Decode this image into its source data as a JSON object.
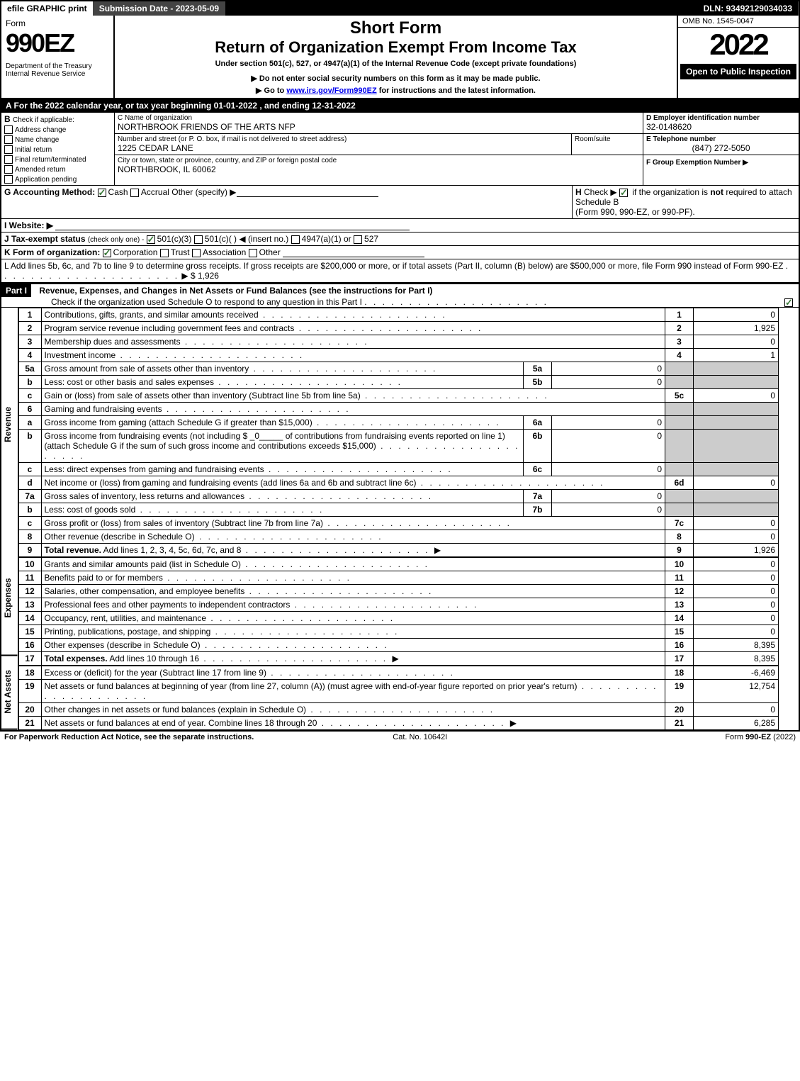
{
  "topbar": {
    "efile": "efile GRAPHIC print",
    "submission": "Submission Date - 2023-05-09",
    "dln": "DLN: 93492129034033"
  },
  "header": {
    "form_label": "Form",
    "form_no": "990EZ",
    "dept": "Department of the Treasury\nInternal Revenue Service",
    "title1": "Short Form",
    "title2": "Return of Organization Exempt From Income Tax",
    "sub1": "Under section 501(c), 527, or 4947(a)(1) of the Internal Revenue Code (except private foundations)",
    "sub2": "▶ Do not enter social security numbers on this form as it may be made public.",
    "sub3_a": "▶ Go to ",
    "sub3_link": "www.irs.gov/Form990EZ",
    "sub3_b": " for instructions and the latest information.",
    "omb": "OMB No. 1545-0047",
    "year": "2022",
    "opento": "Open to Public Inspection"
  },
  "lineA": "A  For the 2022 calendar year, or tax year beginning 01-01-2022 , and ending 12-31-2022",
  "boxB": {
    "label": "B",
    "check": "Check if applicable:",
    "items": [
      "Address change",
      "Name change",
      "Initial return",
      "Final return/terminated",
      "Amended return",
      "Application pending"
    ]
  },
  "boxC": {
    "name_lbl": "C Name of organization",
    "name": "NORTHBROOK FRIENDS OF THE ARTS NFP",
    "addr_lbl": "Number and street (or P. O. box, if mail is not delivered to street address)",
    "addr": "1225 CEDAR LANE",
    "room_lbl": "Room/suite",
    "city_lbl": "City or town, state or province, country, and ZIP or foreign postal code",
    "city": "NORTHBROOK, IL  60062"
  },
  "boxD": {
    "lbl": "D Employer identification number",
    "val": "32-0148620"
  },
  "boxE": {
    "lbl": "E Telephone number",
    "val": "(847) 272-5050"
  },
  "boxF": {
    "lbl": "F Group Exemption Number ▶",
    "val": ""
  },
  "lineG": {
    "lbl": "G Accounting Method:",
    "cash": "Cash",
    "accrual": "Accrual",
    "other": "Other (specify) ▶"
  },
  "lineH": {
    "lbl": "H",
    "txt1": "Check ▶",
    "txt2a": "if the organization is ",
    "txt2b": "not",
    "txt2c": " required to attach Schedule B",
    "txt3": "(Form 990, 990-EZ, or 990-PF)."
  },
  "lineI": "I Website: ▶",
  "lineJ": {
    "lbl": "J Tax-exempt status",
    "sub": "(check only one) -",
    "o1": "501(c)(3)",
    "o2": "501(c)(  ) ◀ (insert no.)",
    "o3": "4947(a)(1) or",
    "o4": "527"
  },
  "lineK": {
    "lbl": "K Form of organization:",
    "o1": "Corporation",
    "o2": "Trust",
    "o3": "Association",
    "o4": "Other"
  },
  "lineL": {
    "txt": "L Add lines 5b, 6c, and 7b to line 9 to determine gross receipts. If gross receipts are $200,000 or more, or if total assets (Part II, column (B) below) are $500,000 or more, file Form 990 instead of Form 990-EZ",
    "val": "▶ $ 1,926"
  },
  "part1": {
    "hdr": "Part I",
    "title": "Revenue, Expenses, and Changes in Net Assets or Fund Balances (see the instructions for Part I)",
    "check": "Check if the organization used Schedule O to respond to any question in this Part I"
  },
  "sections": {
    "revenue": "Revenue",
    "expenses": "Expenses",
    "netassets": "Net Assets"
  },
  "lines": [
    {
      "sec": "rev",
      "n": "1",
      "txt": "Contributions, gifts, grants, and similar amounts received",
      "rn": "1",
      "rv": "0"
    },
    {
      "sec": "rev",
      "n": "2",
      "txt": "Program service revenue including government fees and contracts",
      "rn": "2",
      "rv": "1,925"
    },
    {
      "sec": "rev",
      "n": "3",
      "txt": "Membership dues and assessments",
      "rn": "3",
      "rv": "0"
    },
    {
      "sec": "rev",
      "n": "4",
      "txt": "Investment income",
      "rn": "4",
      "rv": "1"
    },
    {
      "sec": "rev",
      "n": "5a",
      "txt": "Gross amount from sale of assets other than inventory",
      "sn": "5a",
      "sv": "0",
      "grey": true
    },
    {
      "sec": "rev",
      "n": "b",
      "txt": "Less: cost or other basis and sales expenses",
      "sn": "5b",
      "sv": "0",
      "grey": true
    },
    {
      "sec": "rev",
      "n": "c",
      "txt": "Gain or (loss) from sale of assets other than inventory (Subtract line 5b from line 5a)",
      "rn": "5c",
      "rv": "0"
    },
    {
      "sec": "rev",
      "n": "6",
      "txt": "Gaming and fundraising events",
      "grey": true
    },
    {
      "sec": "rev",
      "n": "a",
      "txt": "Gross income from gaming (attach Schedule G if greater than $15,000)",
      "sn": "6a",
      "sv": "0",
      "grey": true
    },
    {
      "sec": "rev",
      "n": "b",
      "txt": "Gross income from fundraising events (not including $ _0_____ of contributions from fundraising events reported on line 1) (attach Schedule G if the sum of such gross income and contributions exceeds $15,000)",
      "sn": "6b",
      "sv": "0",
      "grey": true
    },
    {
      "sec": "rev",
      "n": "c",
      "txt": "Less: direct expenses from gaming and fundraising events",
      "sn": "6c",
      "sv": "0",
      "grey": true
    },
    {
      "sec": "rev",
      "n": "d",
      "txt": "Net income or (loss) from gaming and fundraising events (add lines 6a and 6b and subtract line 6c)",
      "rn": "6d",
      "rv": "0"
    },
    {
      "sec": "rev",
      "n": "7a",
      "txt": "Gross sales of inventory, less returns and allowances",
      "sn": "7a",
      "sv": "0",
      "grey": true
    },
    {
      "sec": "rev",
      "n": "b",
      "txt": "Less: cost of goods sold",
      "sn": "7b",
      "sv": "0",
      "grey": true
    },
    {
      "sec": "rev",
      "n": "c",
      "txt": "Gross profit or (loss) from sales of inventory (Subtract line 7b from line 7a)",
      "rn": "7c",
      "rv": "0"
    },
    {
      "sec": "rev",
      "n": "8",
      "txt": "Other revenue (describe in Schedule O)",
      "rn": "8",
      "rv": "0"
    },
    {
      "sec": "rev",
      "n": "9",
      "txt": "Total revenue. Add lines 1, 2, 3, 4, 5c, 6d, 7c, and 8",
      "rn": "9",
      "rv": "1,926",
      "bold": true,
      "arrow": true
    },
    {
      "sec": "exp",
      "n": "10",
      "txt": "Grants and similar amounts paid (list in Schedule O)",
      "rn": "10",
      "rv": "0"
    },
    {
      "sec": "exp",
      "n": "11",
      "txt": "Benefits paid to or for members",
      "rn": "11",
      "rv": "0"
    },
    {
      "sec": "exp",
      "n": "12",
      "txt": "Salaries, other compensation, and employee benefits",
      "rn": "12",
      "rv": "0"
    },
    {
      "sec": "exp",
      "n": "13",
      "txt": "Professional fees and other payments to independent contractors",
      "rn": "13",
      "rv": "0"
    },
    {
      "sec": "exp",
      "n": "14",
      "txt": "Occupancy, rent, utilities, and maintenance",
      "rn": "14",
      "rv": "0"
    },
    {
      "sec": "exp",
      "n": "15",
      "txt": "Printing, publications, postage, and shipping",
      "rn": "15",
      "rv": "0"
    },
    {
      "sec": "exp",
      "n": "16",
      "txt": "Other expenses (describe in Schedule O)",
      "rn": "16",
      "rv": "8,395"
    },
    {
      "sec": "exp",
      "n": "17",
      "txt": "Total expenses. Add lines 10 through 16",
      "rn": "17",
      "rv": "8,395",
      "bold": true,
      "arrow": true
    },
    {
      "sec": "net",
      "n": "18",
      "txt": "Excess or (deficit) for the year (Subtract line 17 from line 9)",
      "rn": "18",
      "rv": "-6,469"
    },
    {
      "sec": "net",
      "n": "19",
      "txt": "Net assets or fund balances at beginning of year (from line 27, column (A)) (must agree with end-of-year figure reported on prior year's return)",
      "rn": "19",
      "rv": "12,754"
    },
    {
      "sec": "net",
      "n": "20",
      "txt": "Other changes in net assets or fund balances (explain in Schedule O)",
      "rn": "20",
      "rv": "0"
    },
    {
      "sec": "net",
      "n": "21",
      "txt": "Net assets or fund balances at end of year. Combine lines 18 through 20",
      "rn": "21",
      "rv": "6,285",
      "arrow": true
    }
  ],
  "footer": {
    "left": "For Paperwork Reduction Act Notice, see the separate instructions.",
    "mid": "Cat. No. 10642I",
    "right_a": "Form ",
    "right_b": "990-EZ",
    "right_c": " (2022)"
  }
}
